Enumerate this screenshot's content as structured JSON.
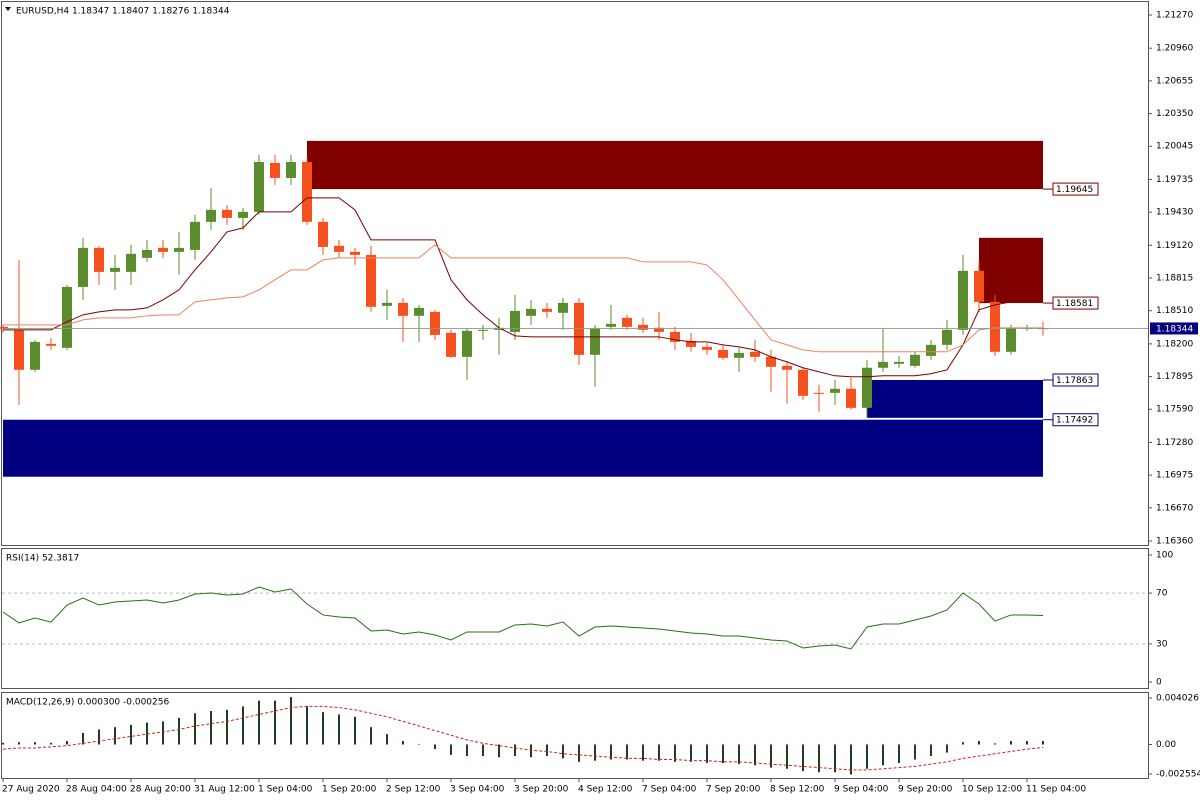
{
  "chart_data": [
    {
      "type": "candlestick",
      "title": "EURUSD,H4  1.18347 1.18407 1.18276 1.18344",
      "categories": [
        "27 Aug 2020",
        null,
        null,
        null,
        "28 Aug 04:00",
        null,
        null,
        null,
        "28 Aug 20:00",
        null,
        null,
        null,
        "31 Aug 12:00",
        null,
        null,
        null,
        "1 Sep 04:00",
        null,
        null,
        null,
        "1 Sep 20:00",
        null,
        null,
        null,
        "2 Sep 12:00",
        null,
        null,
        null,
        "3 Sep 04:00",
        null,
        null,
        null,
        "3 Sep 20:00",
        null,
        null,
        null,
        "4 Sep 12:00",
        null,
        null,
        null,
        "7 Sep 04:00",
        null,
        null,
        null,
        "7 Sep 20:00",
        null,
        null,
        null,
        "8 Sep 12:00",
        null,
        null,
        null,
        "9 Sep 04:00",
        null,
        null,
        null,
        "9 Sep 20:00",
        null,
        null,
        null,
        "10 Sep 12:00",
        null,
        null,
        null,
        "11 Sep 04:00",
        null
      ],
      "open": [
        1.18359,
        1.18331,
        1.17958,
        1.182,
        1.18163,
        1.18732,
        1.19096,
        1.18872,
        1.18872,
        1.19003,
        1.19096,
        1.19059,
        1.19077,
        1.19339,
        1.19451,
        1.19376,
        1.19432,
        1.19889,
        1.19749,
        1.19898,
        1.19339,
        1.19115,
        1.19059,
        1.19031,
        1.18555,
        1.18583,
        1.18462,
        1.18499,
        1.18303,
        1.18079,
        1.18322,
        1.18331,
        1.18312,
        1.18462,
        1.18527,
        1.1849,
        1.18583,
        1.18098,
        1.18359,
        1.18443,
        1.18378,
        1.1835,
        1.18312,
        1.18228,
        1.18172,
        1.18144,
        1.1807,
        1.18126,
        1.18079,
        1.17995,
        1.17958,
        1.17743,
        1.17743,
        1.17781,
        1.17603,
        1.17977,
        1.18014,
        1.17995,
        1.18088,
        1.18191,
        1.18331,
        1.18882,
        1.18592,
        1.18126,
        1.1834,
        1.18347
      ],
      "high": [
        1.18378,
        1.18984,
        1.18238,
        1.18256,
        1.18751,
        1.19189,
        1.19115,
        1.19031,
        1.19124,
        1.19171,
        1.19171,
        1.19245,
        1.19404,
        1.19656,
        1.19497,
        1.19469,
        1.19964,
        1.19964,
        1.19964,
        1.19936,
        1.19376,
        1.19171,
        1.19096,
        1.19115,
        1.18704,
        1.1863,
        1.18564,
        1.18518,
        1.18331,
        1.1835,
        1.18378,
        1.18443,
        1.18658,
        1.18611,
        1.18583,
        1.1863,
        1.1863,
        1.18378,
        1.18564,
        1.18471,
        1.18443,
        1.18499,
        1.18359,
        1.18303,
        1.1821,
        1.18191,
        1.18163,
        1.18238,
        1.18144,
        1.18032,
        1.17977,
        1.17818,
        1.17865,
        1.17883,
        1.18051,
        1.1835,
        1.18088,
        1.18126,
        1.18238,
        1.18424,
        1.19031,
        1.18965,
        1.18658,
        1.18378,
        1.18378,
        1.18407
      ],
      "low": [
        1.18303,
        1.17631,
        1.17939,
        1.18144,
        1.18144,
        1.18611,
        1.18751,
        1.18704,
        1.18751,
        1.18965,
        1.19003,
        1.18844,
        1.18984,
        1.19264,
        1.19311,
        1.19264,
        1.19404,
        1.19684,
        1.19684,
        1.19311,
        1.19031,
        1.19003,
        1.18937,
        1.18499,
        1.18424,
        1.18219,
        1.18219,
        1.18238,
        1.1807,
        1.17865,
        1.18238,
        1.18098,
        1.18238,
        1.18378,
        1.18443,
        1.18331,
        1.18004,
        1.17799,
        1.18331,
        1.18331,
        1.18303,
        1.18238,
        1.18144,
        1.18126,
        1.18098,
        1.18051,
        1.17939,
        1.18032,
        1.17753,
        1.17641,
        1.17678,
        1.17566,
        1.17631,
        1.17585,
        1.1751,
        1.17939,
        1.17977,
        1.17977,
        1.18051,
        1.18144,
        1.18284,
        1.18499,
        1.18088,
        1.18098,
        1.18322,
        1.18276
      ],
      "close": [
        1.1834,
        1.17958,
        1.18219,
        1.18182,
        1.18732,
        1.19096,
        1.18872,
        1.1891,
        1.1904,
        1.19077,
        1.19059,
        1.19096,
        1.19339,
        1.19451,
        1.19376,
        1.19432,
        1.19898,
        1.19749,
        1.19898,
        1.19339,
        1.19105,
        1.19059,
        1.19031,
        1.18546,
        1.18583,
        1.18462,
        1.18536,
        1.18284,
        1.18079,
        1.18322,
        1.18331,
        1.1835,
        1.18508,
        1.18527,
        1.18499,
        1.18583,
        1.18098,
        1.1834,
        1.18387,
        1.18359,
        1.18331,
        1.18312,
        1.18219,
        1.18172,
        1.18144,
        1.1807,
        1.18116,
        1.18079,
        1.17986,
        1.17958,
        1.17715,
        1.17734,
        1.17781,
        1.17603,
        1.17977,
        1.18032,
        1.18032,
        1.18098,
        1.18191,
        1.18331,
        1.18882,
        1.18592,
        1.18126,
        1.1835,
        1.1835,
        1.18344
      ],
      "up_color": "#5b8c2d",
      "down_color": "#f4511e",
      "series": [
        {
          "type": "line",
          "color": "#7b0000",
          "values": [
            1.18331,
            1.18331,
            1.18331,
            1.18331,
            1.18406,
            1.18471,
            1.18499,
            1.18518,
            1.18518,
            1.18536,
            1.18611,
            1.18704,
            1.18891,
            1.19059,
            1.19245,
            1.19283,
            1.19432,
            1.19432,
            1.19432,
            1.19563,
            1.19563,
            1.19563,
            1.19451,
            1.19171,
            1.19171,
            1.19171,
            1.19171,
            1.19171,
            1.18798,
            1.18611,
            1.18471,
            1.1835,
            1.18275,
            1.18266,
            1.18266,
            1.18266,
            1.18266,
            1.18266,
            1.18266,
            1.18266,
            1.18266,
            1.18266,
            1.18238,
            1.18219,
            1.18219,
            1.18191,
            1.18172,
            1.18144,
            1.18079,
            1.18032,
            1.17977,
            1.17939,
            1.17902,
            1.17893,
            1.17893,
            1.17902,
            1.17902,
            1.17902,
            1.17921,
            1.17958,
            1.18191,
            1.18518,
            1.18564,
            1.18592,
            1.18592,
            1.18592
          ]
        },
        {
          "type": "line",
          "color": "#f08060",
          "values": [
            1.18378,
            1.18378,
            1.18378,
            1.18378,
            1.18378,
            1.18424,
            1.18443,
            1.18443,
            1.18443,
            1.18462,
            1.18471,
            1.18471,
            1.18592,
            1.18611,
            1.1863,
            1.18639,
            1.18704,
            1.18798,
            1.18891,
            1.18891,
            1.18984,
            1.19003,
            1.19003,
            1.19003,
            1.19003,
            1.19003,
            1.19003,
            1.19124,
            1.19003,
            1.19003,
            1.19003,
            1.19003,
            1.19003,
            1.19003,
            1.19003,
            1.19003,
            1.19003,
            1.19003,
            1.19003,
            1.19003,
            1.18965,
            1.18965,
            1.18965,
            1.18965,
            1.18937,
            1.18798,
            1.18611,
            1.18424,
            1.18238,
            1.18191,
            1.18144,
            1.18126,
            1.18126,
            1.18126,
            1.18126,
            1.18126,
            1.18126,
            1.18126,
            1.18126,
            1.18126,
            1.18191,
            1.18331,
            1.1835,
            1.1835,
            1.1835,
            1.1835
          ]
        }
      ],
      "zones": [
        {
          "color": "#800000",
          "top": 1.20095,
          "bottom": 1.19645,
          "start": 19,
          "end": 65,
          "label_at": "bottom"
        },
        {
          "color": "#800000",
          "top": 1.1919,
          "bottom": 1.18581,
          "start": 61,
          "end": 65,
          "label_at": "bottom"
        },
        {
          "color": "#000080",
          "top": 1.17863,
          "bottom": 1.1751,
          "start": 54,
          "end": 65,
          "label_at": "top"
        },
        {
          "color": "#000080",
          "top": 1.17492,
          "bottom": 1.1696,
          "start": 0,
          "end": 65,
          "label_at": "top"
        }
      ],
      "current_price_line": true,
      "ylim": [
        1.1636,
        1.2127
      ],
      "yticks": [
        {
          "value": 1.2127,
          "label": "1.21270"
        },
        {
          "value": 1.2096,
          "label": "1.20960"
        },
        1.20655,
        {
          "value": 1.2035,
          "label": "1.20350"
        },
        1.20045,
        1.19735,
        {
          "value": 1.1943,
          "label": "1.19430"
        },
        {
          "value": 1.1912,
          "label": "1.19120"
        },
        1.18815,
        {
          "value": 1.1851,
          "label": "1.18510"
        },
        {
          "value": 1.182,
          "label": "1.18200"
        },
        1.17895,
        {
          "value": 1.1759,
          "label": "1.17590"
        },
        {
          "value": 1.1728,
          "label": "1.17280"
        },
        1.16975,
        {
          "value": 1.1667,
          "label": "1.16670"
        },
        {
          "value": 1.1636,
          "label": "1.16360"
        }
      ]
    },
    {
      "type": "line",
      "title": "RSI(14) 52.3817",
      "series": [
        {
          "type": "line",
          "color": "#2a6e1a",
          "values": [
            55.1,
            46.5,
            50.4,
            47.2,
            60.6,
            66.1,
            60.6,
            63.0,
            63.8,
            64.6,
            62.2,
            64.6,
            69.3,
            70.1,
            68.5,
            69.3,
            74.8,
            70.9,
            73.2,
            61.4,
            52.8,
            51.2,
            50.4,
            40.2,
            40.9,
            37.8,
            39.4,
            37.0,
            33.1,
            39.4,
            39.4,
            39.4,
            44.9,
            45.7,
            44.1,
            47.2,
            36.2,
            43.3,
            44.1,
            43.3,
            42.5,
            41.7,
            40.2,
            38.6,
            37.8,
            36.2,
            36.2,
            34.6,
            33.1,
            32.3,
            26.8,
            28.3,
            29.1,
            26.0,
            43.3,
            45.7,
            45.7,
            48.8,
            52.0,
            56.7,
            70.1,
            61.4,
            48.0,
            52.8,
            52.8,
            52.3817
          ]
        }
      ],
      "levels": [
        70,
        30
      ],
      "ylim": [
        0,
        100
      ],
      "yticks": [
        100,
        70,
        30,
        0
      ]
    },
    {
      "type": "line",
      "title": "MACD(12,26,9) 0.000300 -0.000256",
      "series": [
        {
          "type": "bar",
          "color": "#1e3d1e",
          "values": [
            0.00015,
            0.0002,
            0.0002,
            0.00015,
            0.0003,
            0.001,
            0.0013,
            0.0015,
            0.0017,
            0.0019,
            0.002,
            0.0023,
            0.0027,
            0.0029,
            0.003,
            0.0033,
            0.0038,
            0.0038,
            0.0041,
            0.0033,
            0.0028,
            0.0026,
            0.0024,
            0.0015,
            0.0009,
            0.0003,
            5e-05,
            -0.0004,
            -0.0009,
            -0.001,
            -0.001,
            -0.0011,
            -0.001,
            -0.0011,
            -0.001,
            -0.0012,
            -0.0015,
            -0.0014,
            -0.0013,
            -0.0013,
            -0.0014,
            -0.0014,
            -0.0015,
            -0.0015,
            -0.0016,
            -0.0016,
            -0.0017,
            -0.0018,
            -0.002,
            -0.0021,
            -0.0023,
            -0.0024,
            -0.0024,
            -0.0026,
            -0.0021,
            -0.0018,
            -0.0016,
            -0.0013,
            -0.001,
            -0.0007,
            0.0002,
            0.0003,
            0.0001,
            0.0003,
            0.0003,
            0.0003
          ]
        },
        {
          "type": "line",
          "color": "#cc2222",
          "dashed": true,
          "values": [
            -0.0004,
            -0.0003,
            -0.0003,
            -0.0002,
            -0.0001,
            0.0001,
            0.0003,
            0.0005,
            0.0007,
            0.0009,
            0.0011,
            0.0013,
            0.0016,
            0.0018,
            0.002,
            0.0023,
            0.0026,
            0.0029,
            0.0032,
            0.0033,
            0.0033,
            0.0032,
            0.003,
            0.0027,
            0.0024,
            0.002,
            0.0016,
            0.0012,
            0.0008,
            0.0004,
            0.0001,
            -0.0001,
            -0.0003,
            -0.0005,
            -0.0006,
            -0.0008,
            -0.0009,
            -0.001,
            -0.0011,
            -0.0012,
            -0.0012,
            -0.0013,
            -0.0013,
            -0.0014,
            -0.0014,
            -0.0015,
            -0.0015,
            -0.0016,
            -0.0017,
            -0.0018,
            -0.0019,
            -0.002,
            -0.0021,
            -0.0022,
            -0.0022,
            -0.0021,
            -0.002,
            -0.0019,
            -0.0017,
            -0.0015,
            -0.0012,
            -0.001,
            -0.0008,
            -0.0006,
            -0.0004,
            -0.000256
          ]
        }
      ],
      "ylim": [
        -0.002554,
        0.004026
      ],
      "yticks": [
        0.004026,
        {
          "value": 0,
          "label": "0.00"
        },
        -0.002554
      ]
    }
  ]
}
